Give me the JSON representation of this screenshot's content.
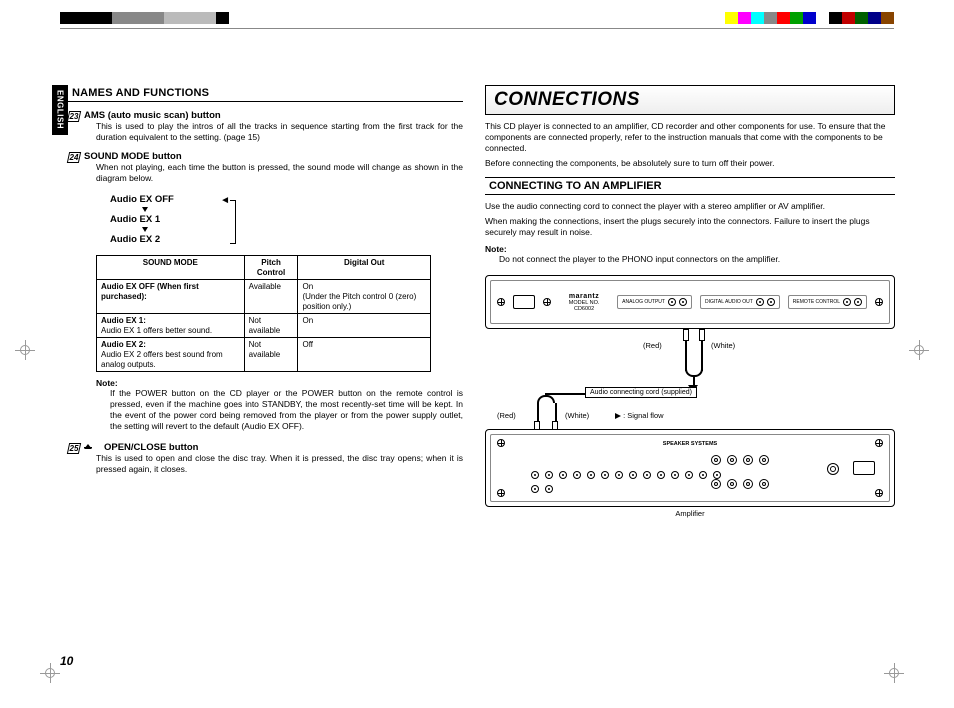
{
  "page_number": "10",
  "side_tab": "ENGLISH",
  "reg_bw": [
    "#000000",
    "#000000",
    "#000000",
    "#000000",
    "#888888",
    "#888888",
    "#888888",
    "#888888",
    "#bbbbbb",
    "#bbbbbb",
    "#bbbbbb",
    "#bbbbbb",
    "#000000"
  ],
  "reg_color": [
    "#ffff00",
    "#ff00ff",
    "#00ffff",
    "#888888",
    "#ff0000",
    "#00a000",
    "#0000cc",
    "#ffffff",
    "#000000",
    "#c00000",
    "#006000",
    "#000088",
    "#884400"
  ],
  "left": {
    "section": "NAMES AND FUNCTIONS",
    "items": [
      {
        "num": "23",
        "title": "AMS (auto music scan) button",
        "body": "This is used to play the intros of all the tracks in sequence starting from the first track for the duration equivalent to the setting.\n(page 15)"
      },
      {
        "num": "24",
        "title": "SOUND MODE button",
        "body": "When not playing, each time the button is pressed, the sound mode will change as shown in the diagram below."
      }
    ],
    "cycle": [
      "Audio EX OFF",
      "Audio EX 1",
      "Audio EX 2"
    ],
    "table": {
      "headers": [
        "SOUND MODE",
        "Pitch Control",
        "Digital Out"
      ],
      "rows": [
        [
          "Audio EX OFF (When first purchased):",
          "Available",
          "On\n(Under the Pitch control 0 (zero) position only.)"
        ],
        [
          "Audio EX 1:\nAudio EX 1 offers better sound.",
          "Not available",
          "On"
        ],
        [
          "Audio EX 2:\nAudio EX 2 offers best sound from analog outputs.",
          "Not available",
          "Off"
        ]
      ]
    },
    "note_label": "Note:",
    "note_body": "If the POWER button on the CD player or the POWER button on the remote control is pressed, even if the machine goes into STANDBY, the most recently-set time will be kept. In the event of the power cord being removed from the player or from the power supply outlet, the setting will revert to the default (Audio EX OFF).",
    "item3": {
      "num": "25",
      "title": "OPEN/CLOSE button",
      "body": "This is used to open and close the disc tray. When it is pressed, the disc tray opens; when it is pressed again, it closes."
    }
  },
  "right": {
    "main_head": "CONNECTIONS",
    "intro1": "This CD player is connected to an amplifier, CD recorder and other components for use. To ensure that the components are connected properly, refer to the instruction manuals that come with the components to be connected.",
    "intro2": "Before connecting the components, be absolutely sure to turn off their power.",
    "sub_head": "CONNECTING TO AN AMPLIFIER",
    "body1": "Use the audio connecting cord to connect the player with a stereo amplifier or AV amplifier.",
    "body2": "When making the connections, insert the plugs securely into the connectors. Failure to insert the plugs securely may result in noise.",
    "note_label": "Note:",
    "note_body": "Do not connect the player to the PHONO input connectors on the amplifier.",
    "diagram": {
      "brand": "marantz",
      "model_line": "MODEL NO. CD6002",
      "analog_label": "ANALOG OUTPUT",
      "digital_label": "DIGITAL AUDIO OUT",
      "remote_label": "REMOTE CONTROL",
      "red": "(Red)",
      "white": "(White)",
      "cord": "Audio connecting cord (supplied)",
      "signal": ": Signal flow",
      "amp": "Amplifier",
      "speaker_label": "SPEAKER SYSTEMS"
    }
  }
}
